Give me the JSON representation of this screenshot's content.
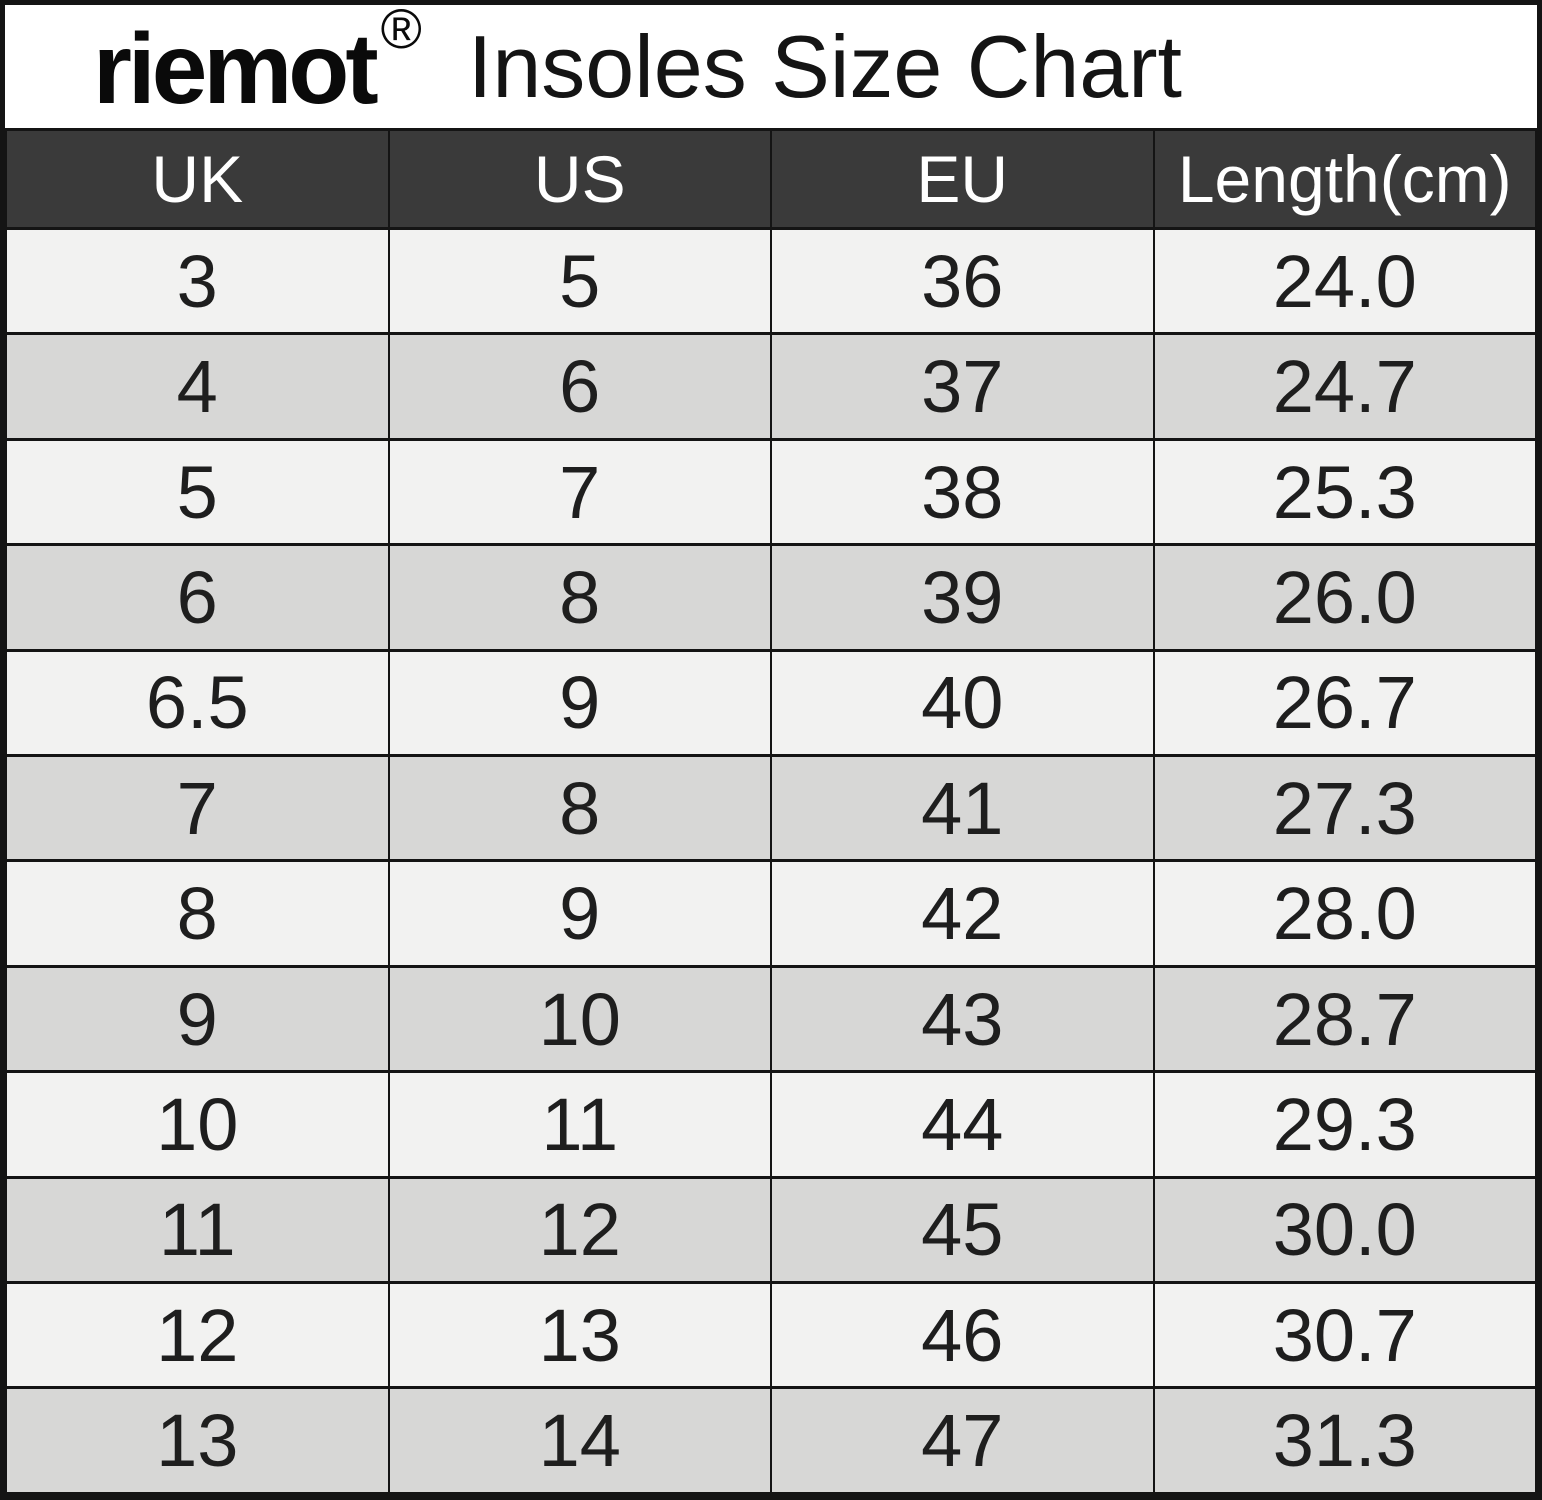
{
  "brand": {
    "logo_text": "riemot",
    "registered_mark": "®"
  },
  "title": "Insoles Size Chart",
  "table": {
    "columns": [
      "UK",
      "US",
      "EU",
      "Length(cm)"
    ],
    "rows": [
      [
        "3",
        "5",
        "36",
        "24.0"
      ],
      [
        "4",
        "6",
        "37",
        "24.7"
      ],
      [
        "5",
        "7",
        "38",
        "25.3"
      ],
      [
        "6",
        "8",
        "39",
        "26.0"
      ],
      [
        "6.5",
        "9",
        "40",
        "26.7"
      ],
      [
        "7",
        "8",
        "41",
        "27.3"
      ],
      [
        "8",
        "9",
        "42",
        "28.0"
      ],
      [
        "9",
        "10",
        "43",
        "28.7"
      ],
      [
        "10",
        "11",
        "44",
        "29.3"
      ],
      [
        "11",
        "12",
        "45",
        "30.0"
      ],
      [
        "12",
        "13",
        "46",
        "30.7"
      ],
      [
        "13",
        "14",
        "47",
        "31.3"
      ]
    ]
  },
  "colors": {
    "header_bg": "#3a3a3a",
    "header_text": "#ffffff",
    "row_light": "#f2f2f1",
    "row_dark": "#d7d7d6",
    "border": "#141414",
    "title_bg": "#ffffff",
    "text": "#1e1e1e"
  },
  "chart_data": {
    "type": "table",
    "title": "Insoles Size Chart",
    "columns": [
      "UK",
      "US",
      "EU",
      "Length(cm)"
    ],
    "rows": [
      [
        "3",
        "5",
        "36",
        "24.0"
      ],
      [
        "4",
        "6",
        "37",
        "24.7"
      ],
      [
        "5",
        "7",
        "38",
        "25.3"
      ],
      [
        "6",
        "8",
        "39",
        "26.0"
      ],
      [
        "6.5",
        "9",
        "40",
        "26.7"
      ],
      [
        "7",
        "8",
        "41",
        "27.3"
      ],
      [
        "8",
        "9",
        "42",
        "28.0"
      ],
      [
        "9",
        "10",
        "43",
        "28.7"
      ],
      [
        "10",
        "11",
        "44",
        "29.3"
      ],
      [
        "11",
        "12",
        "45",
        "30.0"
      ],
      [
        "12",
        "13",
        "46",
        "30.7"
      ],
      [
        "13",
        "14",
        "47",
        "31.3"
      ]
    ],
    "layout": {
      "alternating_row_shading": true,
      "header_style": "dark-band-white-text"
    }
  }
}
